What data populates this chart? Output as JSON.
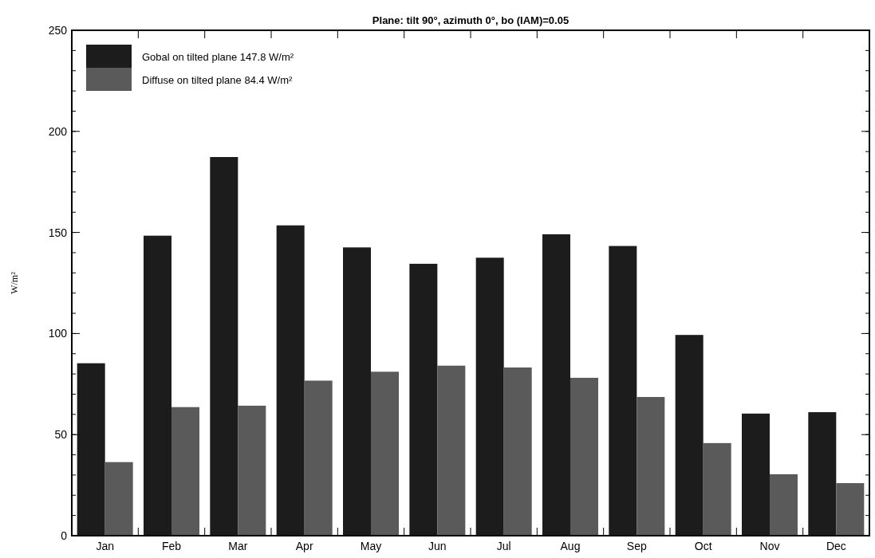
{
  "chart_data": {
    "type": "bar",
    "title": "Plane: tilt 90°, azimuth 0°, bo (IAM)=0.05",
    "ylabel": "W/m²",
    "categories": [
      "Jan",
      "Feb",
      "Mar",
      "Apr",
      "May",
      "Jun",
      "Jul",
      "Aug",
      "Sep",
      "Oct",
      "Nov",
      "Dec"
    ],
    "series": [
      {
        "name": "Gobal on tilted plane  147.8 W/m²",
        "color": "#1c1c1c",
        "values": [
          85.3,
          148.4,
          187.3,
          153.5,
          142.6,
          134.5,
          137.5,
          149.1,
          143.3,
          99.3,
          60.4,
          61.1
        ]
      },
      {
        "name": "Diffuse on tilted plane  84.4 W/m²",
        "color": "#5a5a5a",
        "values": [
          36.4,
          63.6,
          64.3,
          76.7,
          81.1,
          84.1,
          83.2,
          78.1,
          68.6,
          45.8,
          30.4,
          26.0
        ]
      }
    ],
    "ylim": [
      0,
      250
    ],
    "yticks": [
      0,
      50,
      100,
      150,
      200,
      250
    ],
    "grid": false,
    "legend": "top left"
  }
}
